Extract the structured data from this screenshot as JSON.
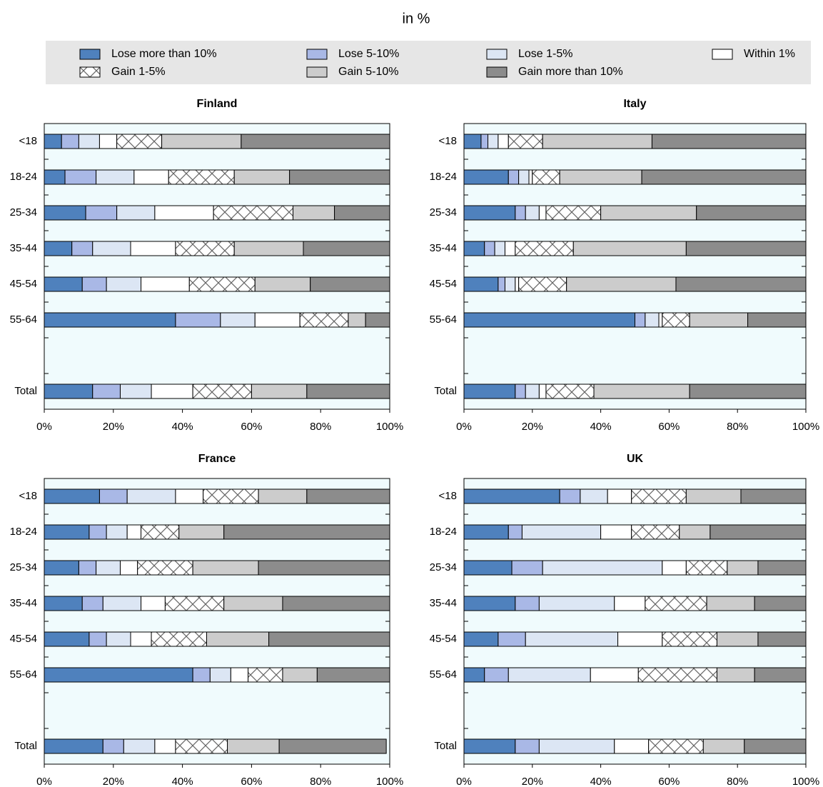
{
  "title": "in %",
  "chart_data": [
    {
      "type": "bar",
      "orientation": "horizontal",
      "stacked": true,
      "title": "Finland",
      "categories": [
        "<18",
        "18-24",
        "25-34",
        "35-44",
        "45-54",
        "55-64",
        null,
        "Total"
      ],
      "xlim": [
        0,
        100
      ],
      "xticks": [
        {
          "value": 0,
          "label": "0%"
        },
        {
          "value": 20,
          "label": "20%"
        },
        {
          "value": 40,
          "label": "40%"
        },
        {
          "value": 60,
          "label": "60%"
        },
        {
          "value": 80,
          "label": "80%"
        },
        {
          "value": 100,
          "label": "100%"
        }
      ],
      "series": [
        {
          "name": "Lose more than 10%",
          "color": "#4f81bd",
          "values": [
            5,
            6,
            12,
            8,
            11,
            38,
            null,
            14
          ]
        },
        {
          "name": "Lose 5-10%",
          "color": "#a9b8e6",
          "values": [
            5,
            9,
            9,
            6,
            7,
            13,
            null,
            8
          ]
        },
        {
          "name": "Lose 1-5%",
          "color": "#dce6f4",
          "values": [
            6,
            11,
            11,
            11,
            10,
            10,
            null,
            9
          ]
        },
        {
          "name": "Within 1%",
          "color": "#ffffff",
          "values": [
            5,
            10,
            17,
            13,
            14,
            13,
            null,
            12
          ]
        },
        {
          "name": "Gain 1-5%",
          "color": "#ffffff",
          "hatch": true,
          "values": [
            13,
            19,
            23,
            17,
            19,
            14,
            null,
            17
          ]
        },
        {
          "name": "Gain 5-10%",
          "color": "#cccccc",
          "values": [
            23,
            16,
            12,
            20,
            16,
            5,
            null,
            16
          ]
        },
        {
          "name": "Gain more than 10%",
          "color": "#8c8c8c",
          "values": [
            43,
            29,
            16,
            25,
            23,
            7,
            null,
            24
          ]
        }
      ]
    },
    {
      "type": "bar",
      "orientation": "horizontal",
      "stacked": true,
      "title": "Italy",
      "categories": [
        "<18",
        "18-24",
        "25-34",
        "35-44",
        "45-54",
        "55-64",
        null,
        "Total"
      ],
      "xlim": [
        0,
        100
      ],
      "xticks": [
        {
          "value": 0,
          "label": "0%"
        },
        {
          "value": 20,
          "label": "20%"
        },
        {
          "value": 40,
          "label": "40%"
        },
        {
          "value": 60,
          "label": "60%"
        },
        {
          "value": 80,
          "label": "80%"
        },
        {
          "value": 100,
          "label": "100%"
        }
      ],
      "series": [
        {
          "name": "Lose more than 10%",
          "color": "#4f81bd",
          "values": [
            5,
            13,
            15,
            6,
            10,
            50,
            null,
            15
          ]
        },
        {
          "name": "Lose 5-10%",
          "color": "#a9b8e6",
          "values": [
            2,
            3,
            3,
            3,
            2,
            3,
            null,
            3
          ]
        },
        {
          "name": "Lose 1-5%",
          "color": "#dce6f4",
          "values": [
            3,
            3,
            4,
            3,
            3,
            4,
            null,
            4
          ]
        },
        {
          "name": "Within 1%",
          "color": "#ffffff",
          "values": [
            3,
            1,
            2,
            3,
            1,
            1,
            null,
            2
          ]
        },
        {
          "name": "Gain 1-5%",
          "color": "#ffffff",
          "hatch": true,
          "values": [
            10,
            8,
            16,
            17,
            14,
            8,
            null,
            14
          ]
        },
        {
          "name": "Gain 5-10%",
          "color": "#cccccc",
          "values": [
            32,
            24,
            28,
            33,
            32,
            17,
            null,
            28
          ]
        },
        {
          "name": "Gain more than 10%",
          "color": "#8c8c8c",
          "values": [
            45,
            48,
            32,
            35,
            38,
            17,
            null,
            34
          ]
        }
      ]
    },
    {
      "type": "bar",
      "orientation": "horizontal",
      "stacked": true,
      "title": "France",
      "categories": [
        "<18",
        "18-24",
        "25-34",
        "35-44",
        "45-54",
        "55-64",
        null,
        "Total"
      ],
      "xlim": [
        0,
        100
      ],
      "xticks": [
        {
          "value": 0,
          "label": "0%"
        },
        {
          "value": 20,
          "label": "20%"
        },
        {
          "value": 40,
          "label": "40%"
        },
        {
          "value": 60,
          "label": "60%"
        },
        {
          "value": 80,
          "label": "80%"
        },
        {
          "value": 100,
          "label": "100%"
        }
      ],
      "series": [
        {
          "name": "Lose more than 10%",
          "color": "#4f81bd",
          "values": [
            16,
            13,
            10,
            11,
            13,
            43,
            null,
            17
          ]
        },
        {
          "name": "Lose 5-10%",
          "color": "#a9b8e6",
          "values": [
            8,
            5,
            5,
            6,
            5,
            5,
            null,
            6
          ]
        },
        {
          "name": "Lose 1-5%",
          "color": "#dce6f4",
          "values": [
            14,
            6,
            7,
            11,
            7,
            6,
            null,
            9
          ]
        },
        {
          "name": "Within 1%",
          "color": "#ffffff",
          "values": [
            8,
            4,
            5,
            7,
            6,
            5,
            null,
            6
          ]
        },
        {
          "name": "Gain 1-5%",
          "color": "#ffffff",
          "hatch": true,
          "values": [
            16,
            11,
            16,
            17,
            16,
            10,
            null,
            15
          ]
        },
        {
          "name": "Gain 5-10%",
          "color": "#cccccc",
          "values": [
            14,
            13,
            19,
            17,
            18,
            10,
            null,
            15
          ]
        },
        {
          "name": "Gain more than 10%",
          "color": "#8c8c8c",
          "values": [
            24,
            48,
            38,
            31,
            35,
            21,
            null,
            31
          ]
        }
      ]
    },
    {
      "type": "bar",
      "orientation": "horizontal",
      "stacked": true,
      "title": "UK",
      "categories": [
        "<18",
        "18-24",
        "25-34",
        "35-44",
        "45-54",
        "55-64",
        null,
        "Total"
      ],
      "xlim": [
        0,
        100
      ],
      "xticks": [
        {
          "value": 0,
          "label": "0%"
        },
        {
          "value": 20,
          "label": "20%"
        },
        {
          "value": 40,
          "label": "40%"
        },
        {
          "value": 60,
          "label": "60%"
        },
        {
          "value": 80,
          "label": "80%"
        },
        {
          "value": 100,
          "label": "100%"
        }
      ],
      "series": [
        {
          "name": "Lose more than 10%",
          "color": "#4f81bd",
          "values": [
            28,
            13,
            14,
            15,
            10,
            6,
            null,
            15
          ]
        },
        {
          "name": "Lose 5-10%",
          "color": "#a9b8e6",
          "values": [
            6,
            4,
            9,
            7,
            8,
            7,
            null,
            7
          ]
        },
        {
          "name": "Lose 1-5%",
          "color": "#dce6f4",
          "values": [
            8,
            23,
            35,
            22,
            27,
            24,
            null,
            22
          ]
        },
        {
          "name": "Within 1%",
          "color": "#ffffff",
          "values": [
            7,
            9,
            7,
            9,
            13,
            14,
            null,
            10
          ]
        },
        {
          "name": "Gain 1-5%",
          "color": "#ffffff",
          "hatch": true,
          "values": [
            16,
            14,
            12,
            18,
            16,
            23,
            null,
            16
          ]
        },
        {
          "name": "Gain 5-10%",
          "color": "#cccccc",
          "values": [
            16,
            9,
            9,
            14,
            12,
            11,
            null,
            12
          ]
        },
        {
          "name": "Gain more than 10%",
          "color": "#8c8c8c",
          "values": [
            19,
            28,
            14,
            15,
            14,
            15,
            null,
            18
          ]
        }
      ]
    }
  ]
}
